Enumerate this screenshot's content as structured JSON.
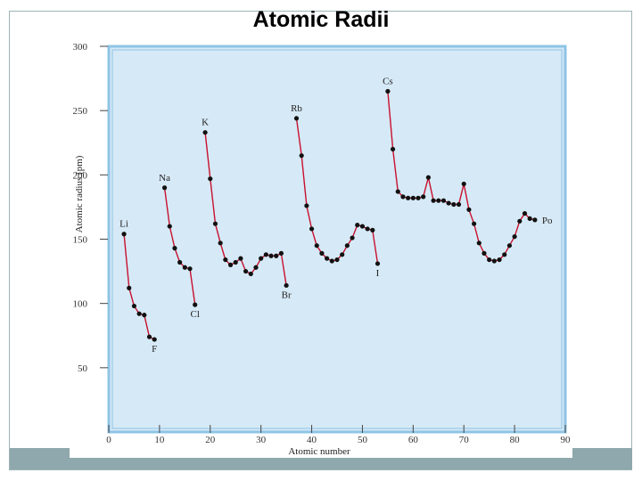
{
  "slide": {
    "title": "Atomic Radii"
  },
  "colors": {
    "plot_fill": "#d6e9f6",
    "plot_border": "#8ec4e6",
    "line": "#c8102e",
    "marker": "#111111",
    "footer": "#8ea8ad"
  },
  "chart_data": {
    "type": "line",
    "title": "",
    "xlabel": "Atomic number",
    "ylabel": "Atomic radius (pm)",
    "xlim": [
      0,
      90
    ],
    "ylim": [
      0,
      300
    ],
    "x_ticks": [
      0,
      10,
      20,
      30,
      40,
      50,
      60,
      70,
      80,
      90
    ],
    "y_ticks": [
      50,
      100,
      150,
      200,
      250,
      300
    ],
    "grid": false,
    "series": [
      {
        "x": [
          3,
          4,
          5,
          6,
          7,
          8,
          9
        ],
        "y": [
          154,
          112,
          98,
          92,
          91,
          74,
          72
        ]
      },
      {
        "x": [
          11,
          12,
          13,
          14,
          15,
          16,
          17
        ],
        "y": [
          190,
          160,
          143,
          132,
          128,
          127,
          99
        ]
      },
      {
        "x": [
          19,
          20,
          21,
          22,
          23,
          24,
          25,
          26,
          27,
          28,
          29,
          30,
          31,
          32,
          33,
          34,
          35
        ],
        "y": [
          233,
          197,
          162,
          147,
          134,
          130,
          132,
          135,
          125,
          123,
          128,
          135,
          138,
          137,
          137,
          139,
          114
        ]
      },
      {
        "x": [
          37,
          38,
          39,
          40,
          41,
          42,
          43,
          44,
          45,
          46,
          47,
          48,
          49,
          50,
          51,
          52,
          53
        ],
        "y": [
          244,
          215,
          176,
          158,
          145,
          139,
          135,
          133,
          134,
          138,
          145,
          151,
          161,
          160,
          158,
          157,
          131
        ]
      },
      {
        "x": [
          55,
          56,
          57,
          58,
          59,
          60,
          61,
          62,
          63,
          64,
          65,
          66,
          67,
          68,
          69,
          70,
          71,
          72,
          73,
          74,
          75,
          76,
          77,
          78,
          79,
          80,
          81,
          82,
          83,
          84
        ],
        "y": [
          265,
          220,
          187,
          183,
          182,
          182,
          182,
          183,
          198,
          180,
          180,
          180,
          178,
          177,
          177,
          193,
          173,
          162,
          147,
          139,
          134,
          133,
          134,
          138,
          145,
          152,
          164,
          170,
          166,
          165
        ]
      }
    ],
    "labels": [
      {
        "text": "Li",
        "x": 3,
        "y": 154
      },
      {
        "text": "Na",
        "x": 11,
        "y": 190
      },
      {
        "text": "K",
        "x": 19,
        "y": 233
      },
      {
        "text": "Rb",
        "x": 37,
        "y": 244
      },
      {
        "text": "Cs",
        "x": 55,
        "y": 265
      },
      {
        "text": "F",
        "x": 9,
        "y": 72
      },
      {
        "text": "Cl",
        "x": 17,
        "y": 99
      },
      {
        "text": "Br",
        "x": 35,
        "y": 114
      },
      {
        "text": "I",
        "x": 53,
        "y": 131
      },
      {
        "text": "Po",
        "x": 84,
        "y": 165
      }
    ]
  }
}
